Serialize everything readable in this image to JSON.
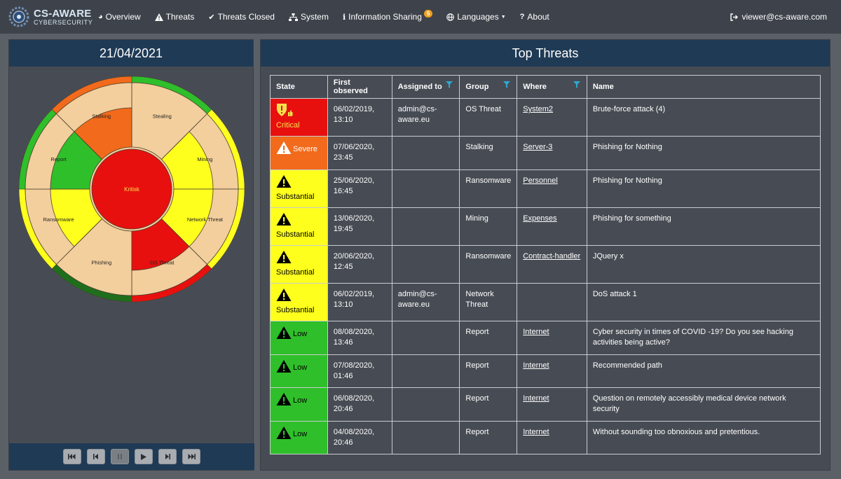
{
  "brand": {
    "title": "CS-AWARE",
    "subtitle": "CYBERSECURITY"
  },
  "nav": {
    "items": [
      {
        "label": "Overview",
        "icon": "pie-chart-icon"
      },
      {
        "label": "Threats",
        "icon": "warning-icon"
      },
      {
        "label": "Threats Closed",
        "icon": "check-icon"
      },
      {
        "label": "System",
        "icon": "sitemap-icon"
      },
      {
        "label": "Information Sharing",
        "icon": "info-icon",
        "badge": "5"
      },
      {
        "label": "Languages",
        "icon": "globe-icon"
      },
      {
        "label": "About",
        "icon": "question-icon"
      }
    ],
    "user": "viewer@cs-aware.com"
  },
  "left": {
    "date": "21/04/2021",
    "chart": {
      "center_label": "Kritisk",
      "colors": {
        "critical": "#e8100f",
        "severe": "#f26a1b",
        "substantial": "#ffff1e",
        "low": "#2fbf2a",
        "neutral": "#f3cf9d",
        "dark_low": "#1f6e1c"
      },
      "segments": [
        {
          "name": "Stealing",
          "level": null
        },
        {
          "name": "Mining",
          "level": "substantial"
        },
        {
          "name": "Network Threat",
          "level": "substantial"
        },
        {
          "name": "OS Threat",
          "level": "critical"
        },
        {
          "name": "Phishing",
          "level": null
        },
        {
          "name": "Ransomware",
          "level": "substantial"
        },
        {
          "name": "Report",
          "level": "low"
        },
        {
          "name": "Stalking",
          "level": "severe"
        }
      ]
    },
    "player_buttons": [
      "first-icon",
      "prev-icon",
      "pause-icon",
      "play-icon",
      "next-icon",
      "last-icon"
    ]
  },
  "right": {
    "title": "Top Threats",
    "columns": [
      "State",
      "First observed",
      "Assigned to",
      "Group",
      "Where",
      "Name"
    ],
    "rows": [
      {
        "state": "Critical",
        "level": "critical",
        "date": "06/02/2019,",
        "time": "13:10",
        "assigned": "admin@cs-aware.eu",
        "group": "OS Threat",
        "where": "System2",
        "name": "Brute-force attack (4)"
      },
      {
        "state": "Severe",
        "level": "severe",
        "date": "07/06/2020,",
        "time": "23:45",
        "assigned": "",
        "group": "Stalking",
        "where": "Server-3",
        "name": "Phishing for Nothing"
      },
      {
        "state": "Substantial",
        "level": "substantial",
        "date": "25/06/2020,",
        "time": "16:45",
        "assigned": "",
        "group": "Ransomware",
        "where": "Personnel",
        "name": "Phishing for Nothing"
      },
      {
        "state": "Substantial",
        "level": "substantial",
        "date": "13/06/2020,",
        "time": "19:45",
        "assigned": "",
        "group": "Mining",
        "where": "Expenses",
        "name": "Phishing for something"
      },
      {
        "state": "Substantial",
        "level": "substantial",
        "date": "20/06/2020,",
        "time": "12:45",
        "assigned": "",
        "group": "Ransomware",
        "where": "Contract-handler",
        "name": "JQuery x"
      },
      {
        "state": "Substantial",
        "level": "substantial",
        "date": "06/02/2019,",
        "time": "13:10",
        "assigned": "admin@cs-aware.eu",
        "group": "Network Threat",
        "where": "",
        "name": "DoS attack 1"
      },
      {
        "state": "Low",
        "level": "low",
        "date": "08/08/2020,",
        "time": "13:46",
        "assigned": "",
        "group": "Report",
        "where": "Internet",
        "name": "Cyber security in times of COVID -19? Do you see hacking activities being active?"
      },
      {
        "state": "Low",
        "level": "low",
        "date": "07/08/2020,",
        "time": "01:46",
        "assigned": "",
        "group": "Report",
        "where": "Internet",
        "name": "Recommended path"
      },
      {
        "state": "Low",
        "level": "low",
        "date": "06/08/2020,",
        "time": "20:46",
        "assigned": "",
        "group": "Report",
        "where": "Internet",
        "name": "Question on remotely accessibly medical device network security"
      },
      {
        "state": "Low",
        "level": "low",
        "date": "04/08/2020,",
        "time": "20:46",
        "assigned": "",
        "group": "Report",
        "where": "Internet",
        "name": "Without sounding too obnoxious and pretentious."
      }
    ]
  }
}
